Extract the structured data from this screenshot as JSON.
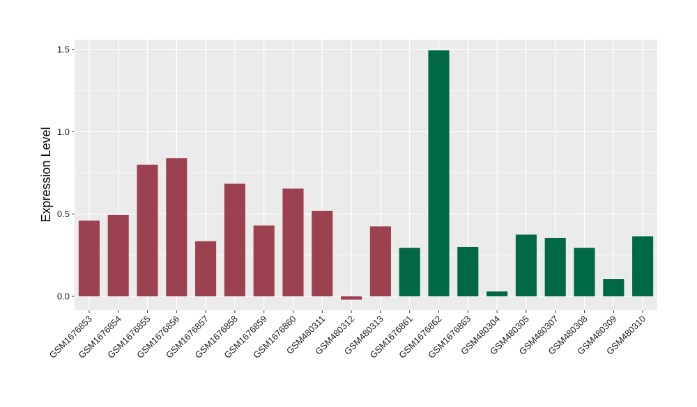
{
  "chart_data": {
    "type": "bar",
    "title": "",
    "xlabel": "",
    "ylabel": "Expression Level",
    "ylim": [
      -0.085,
      1.56
    ],
    "yticks": [
      0.0,
      0.5,
      1.0,
      1.5
    ],
    "ytick_labels": [
      "0.0",
      "0.5",
      "1.0",
      "1.5"
    ],
    "grid": true,
    "legend": "none",
    "categories": [
      "GSM1676853",
      "GSM1676854",
      "GSM1676855",
      "GSM1676856",
      "GSM1676857",
      "GSM1676858",
      "GSM1676859",
      "GSM1676860",
      "GSM480311",
      "GSM480312",
      "GSM480313",
      "GSM1676861",
      "GSM1676862",
      "GSM1676863",
      "GSM480304",
      "GSM480305",
      "GSM480307",
      "GSM480308",
      "GSM480309",
      "GSM480310"
    ],
    "values": [
      0.46,
      0.495,
      0.8,
      0.84,
      0.335,
      0.685,
      0.43,
      0.655,
      0.52,
      -0.02,
      0.425,
      0.295,
      1.495,
      0.3,
      0.03,
      0.375,
      0.355,
      0.295,
      0.105,
      0.365
    ],
    "groups": [
      0,
      0,
      0,
      0,
      0,
      0,
      0,
      0,
      0,
      0,
      0,
      1,
      1,
      1,
      1,
      1,
      1,
      1,
      1,
      1
    ],
    "group_colors": [
      "#9b4150",
      "#006844"
    ],
    "panel_background": "#ebebeb",
    "grid_color": "#ffffff"
  }
}
